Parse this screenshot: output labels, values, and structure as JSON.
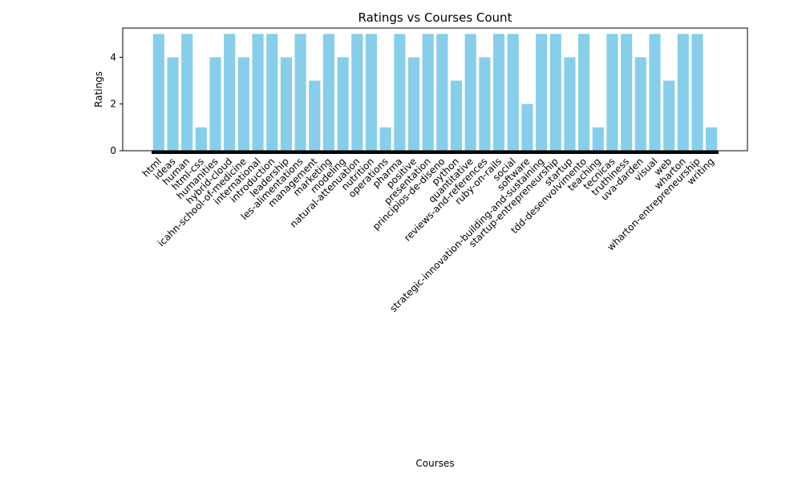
{
  "chart_data": {
    "type": "bar",
    "title": "Ratings vs Courses Count",
    "xlabel": "Courses",
    "ylabel": "Ratings",
    "ylim": [
      0,
      5.25
    ],
    "yticks": [
      0,
      2,
      4
    ],
    "bar_color": "#87ceeb",
    "grid": false,
    "legend": "none",
    "categories": [
      "html",
      "ideas",
      "human",
      "html-css",
      "humanities",
      "hybrid-cloud",
      "icahn-school-of-medicine",
      "international",
      "introduction",
      "leadership",
      "les-alimentations",
      "management",
      "marketing",
      "modeling",
      "natural-attenuation",
      "nutrition",
      "operations",
      "pharma",
      "positive",
      "presentation",
      "principios-de-diseno",
      "python",
      "quantitative",
      "reviews-and-references",
      "ruby-on-rails",
      "social",
      "software",
      "strategic-innovation-building-and-sustaining",
      "startup-entrepreneurship",
      "startup",
      "tdd-desenvolvimento",
      "teaching",
      "tecnicas",
      "truthiness",
      "uva-darden",
      "visual",
      "web",
      "wharton",
      "wharton-entrepreneurship",
      "writing"
    ],
    "values": [
      5,
      4,
      5,
      1,
      4,
      5,
      4,
      5,
      5,
      4,
      5,
      3,
      5,
      4,
      5,
      5,
      1,
      5,
      4,
      5,
      5,
      3,
      5,
      4,
      5,
      5,
      2,
      5,
      5,
      4,
      5,
      1,
      5,
      5,
      4,
      5,
      3,
      5,
      5,
      1
    ]
  }
}
